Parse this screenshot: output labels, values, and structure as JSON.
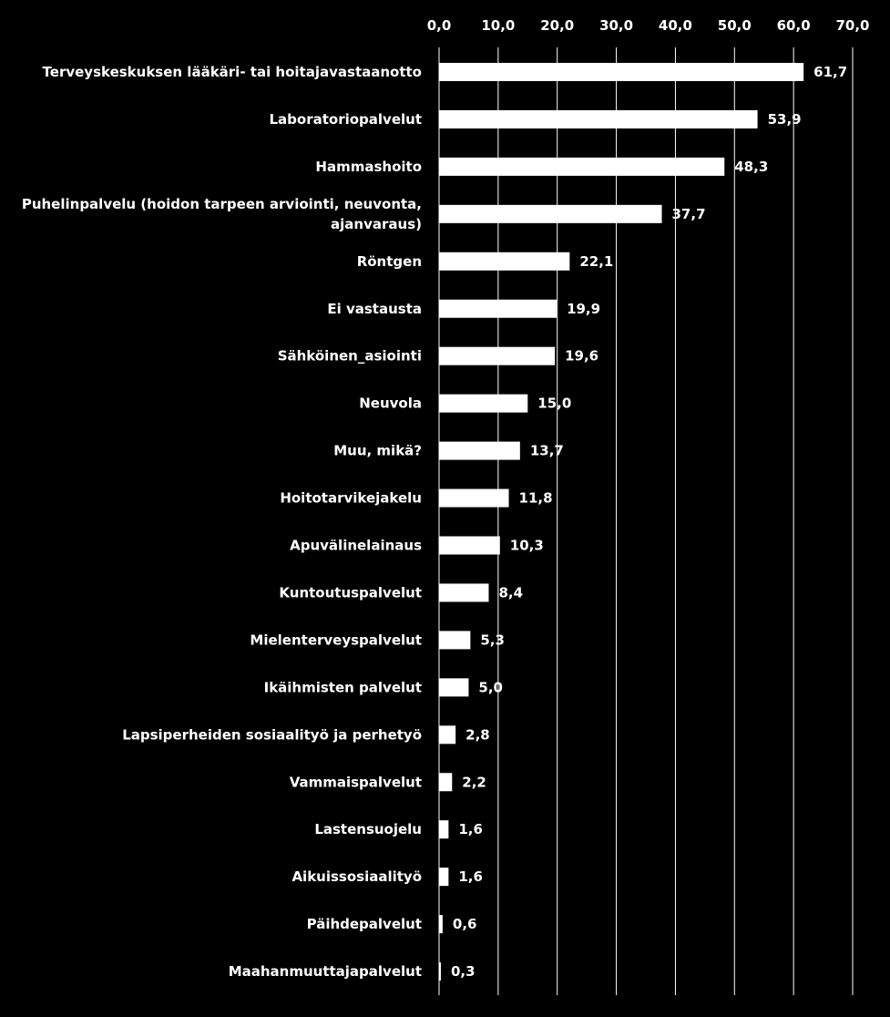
{
  "chart_data": {
    "type": "bar",
    "orientation": "horizontal",
    "title": "",
    "xlabel": "",
    "ylabel": "",
    "xlim": [
      0,
      70
    ],
    "x_ticks": [
      "0,0",
      "10,0",
      "20,0",
      "30,0",
      "40,0",
      "50,0",
      "60,0",
      "70,0"
    ],
    "x_axis_position": "top",
    "grid": true,
    "legend": "none",
    "colors": {
      "background": "#000000",
      "bar": "#ffffff",
      "gridline": "#ffffff",
      "text": "#ffffff"
    },
    "categories": [
      "Terveyskeskuksen lääkäri- tai hoitajavastaanotto",
      "Laboratoriopalvelut",
      "Hammashoito",
      "Puhelinpalvelu (hoidon tarpeen arviointi, neuvonta, ajanvaraus)",
      "Röntgen",
      "Ei vastausta",
      "Sähköinen_asiointi",
      "Neuvola",
      "Muu, mikä?",
      "Hoitotarvikejakelu",
      "Apuvälinelainaus",
      "Kuntoutuspalvelut",
      "Mielenterveyspalvelut",
      "Ikäihmisten palvelut",
      "Lapsiperheiden sosiaalityö ja perhetyö",
      "Vammaispalvelut",
      "Lastensuojelu",
      "Aikuissosiaalityö",
      "Päihdepalvelut",
      "Maahanmuuttajapalvelut"
    ],
    "category_lines": [
      [
        "Terveyskeskuksen lääkäri- tai hoitajavastaanotto"
      ],
      [
        "Laboratoriopalvelut"
      ],
      [
        "Hammashoito"
      ],
      [
        "Puhelinpalvelu (hoidon tarpeen arviointi, neuvonta,",
        "ajanvaraus)"
      ],
      [
        "Röntgen"
      ],
      [
        "Ei vastausta"
      ],
      [
        "Sähköinen_asiointi"
      ],
      [
        "Neuvola"
      ],
      [
        "Muu, mikä?"
      ],
      [
        "Hoitotarvikejakelu"
      ],
      [
        "Apuvälinelainaus"
      ],
      [
        "Kuntoutuspalvelut"
      ],
      [
        "Mielenterveyspalvelut"
      ],
      [
        "Ikäihmisten palvelut"
      ],
      [
        "Lapsiperheiden sosiaalityö ja perhetyö"
      ],
      [
        "Vammaispalvelut"
      ],
      [
        "Lastensuojelu"
      ],
      [
        "Aikuissosiaalityö"
      ],
      [
        "Päihdepalvelut"
      ],
      [
        "Maahanmuuttajapalvelut"
      ]
    ],
    "values": [
      61.7,
      53.9,
      48.3,
      37.7,
      22.1,
      19.9,
      19.6,
      15.0,
      13.7,
      11.8,
      10.3,
      8.4,
      5.3,
      5.0,
      2.8,
      2.2,
      1.6,
      1.6,
      0.6,
      0.3
    ],
    "data_labels": [
      "61,7",
      "53,9",
      "48,3",
      "37,7",
      "22,1",
      "19,9",
      "19,6",
      "15,0",
      "13,7",
      "11,8",
      "10,3",
      "8,4",
      "5,3",
      "5,0",
      "2,8",
      "2,2",
      "1,6",
      "1,6",
      "0,6",
      "0,3"
    ]
  }
}
